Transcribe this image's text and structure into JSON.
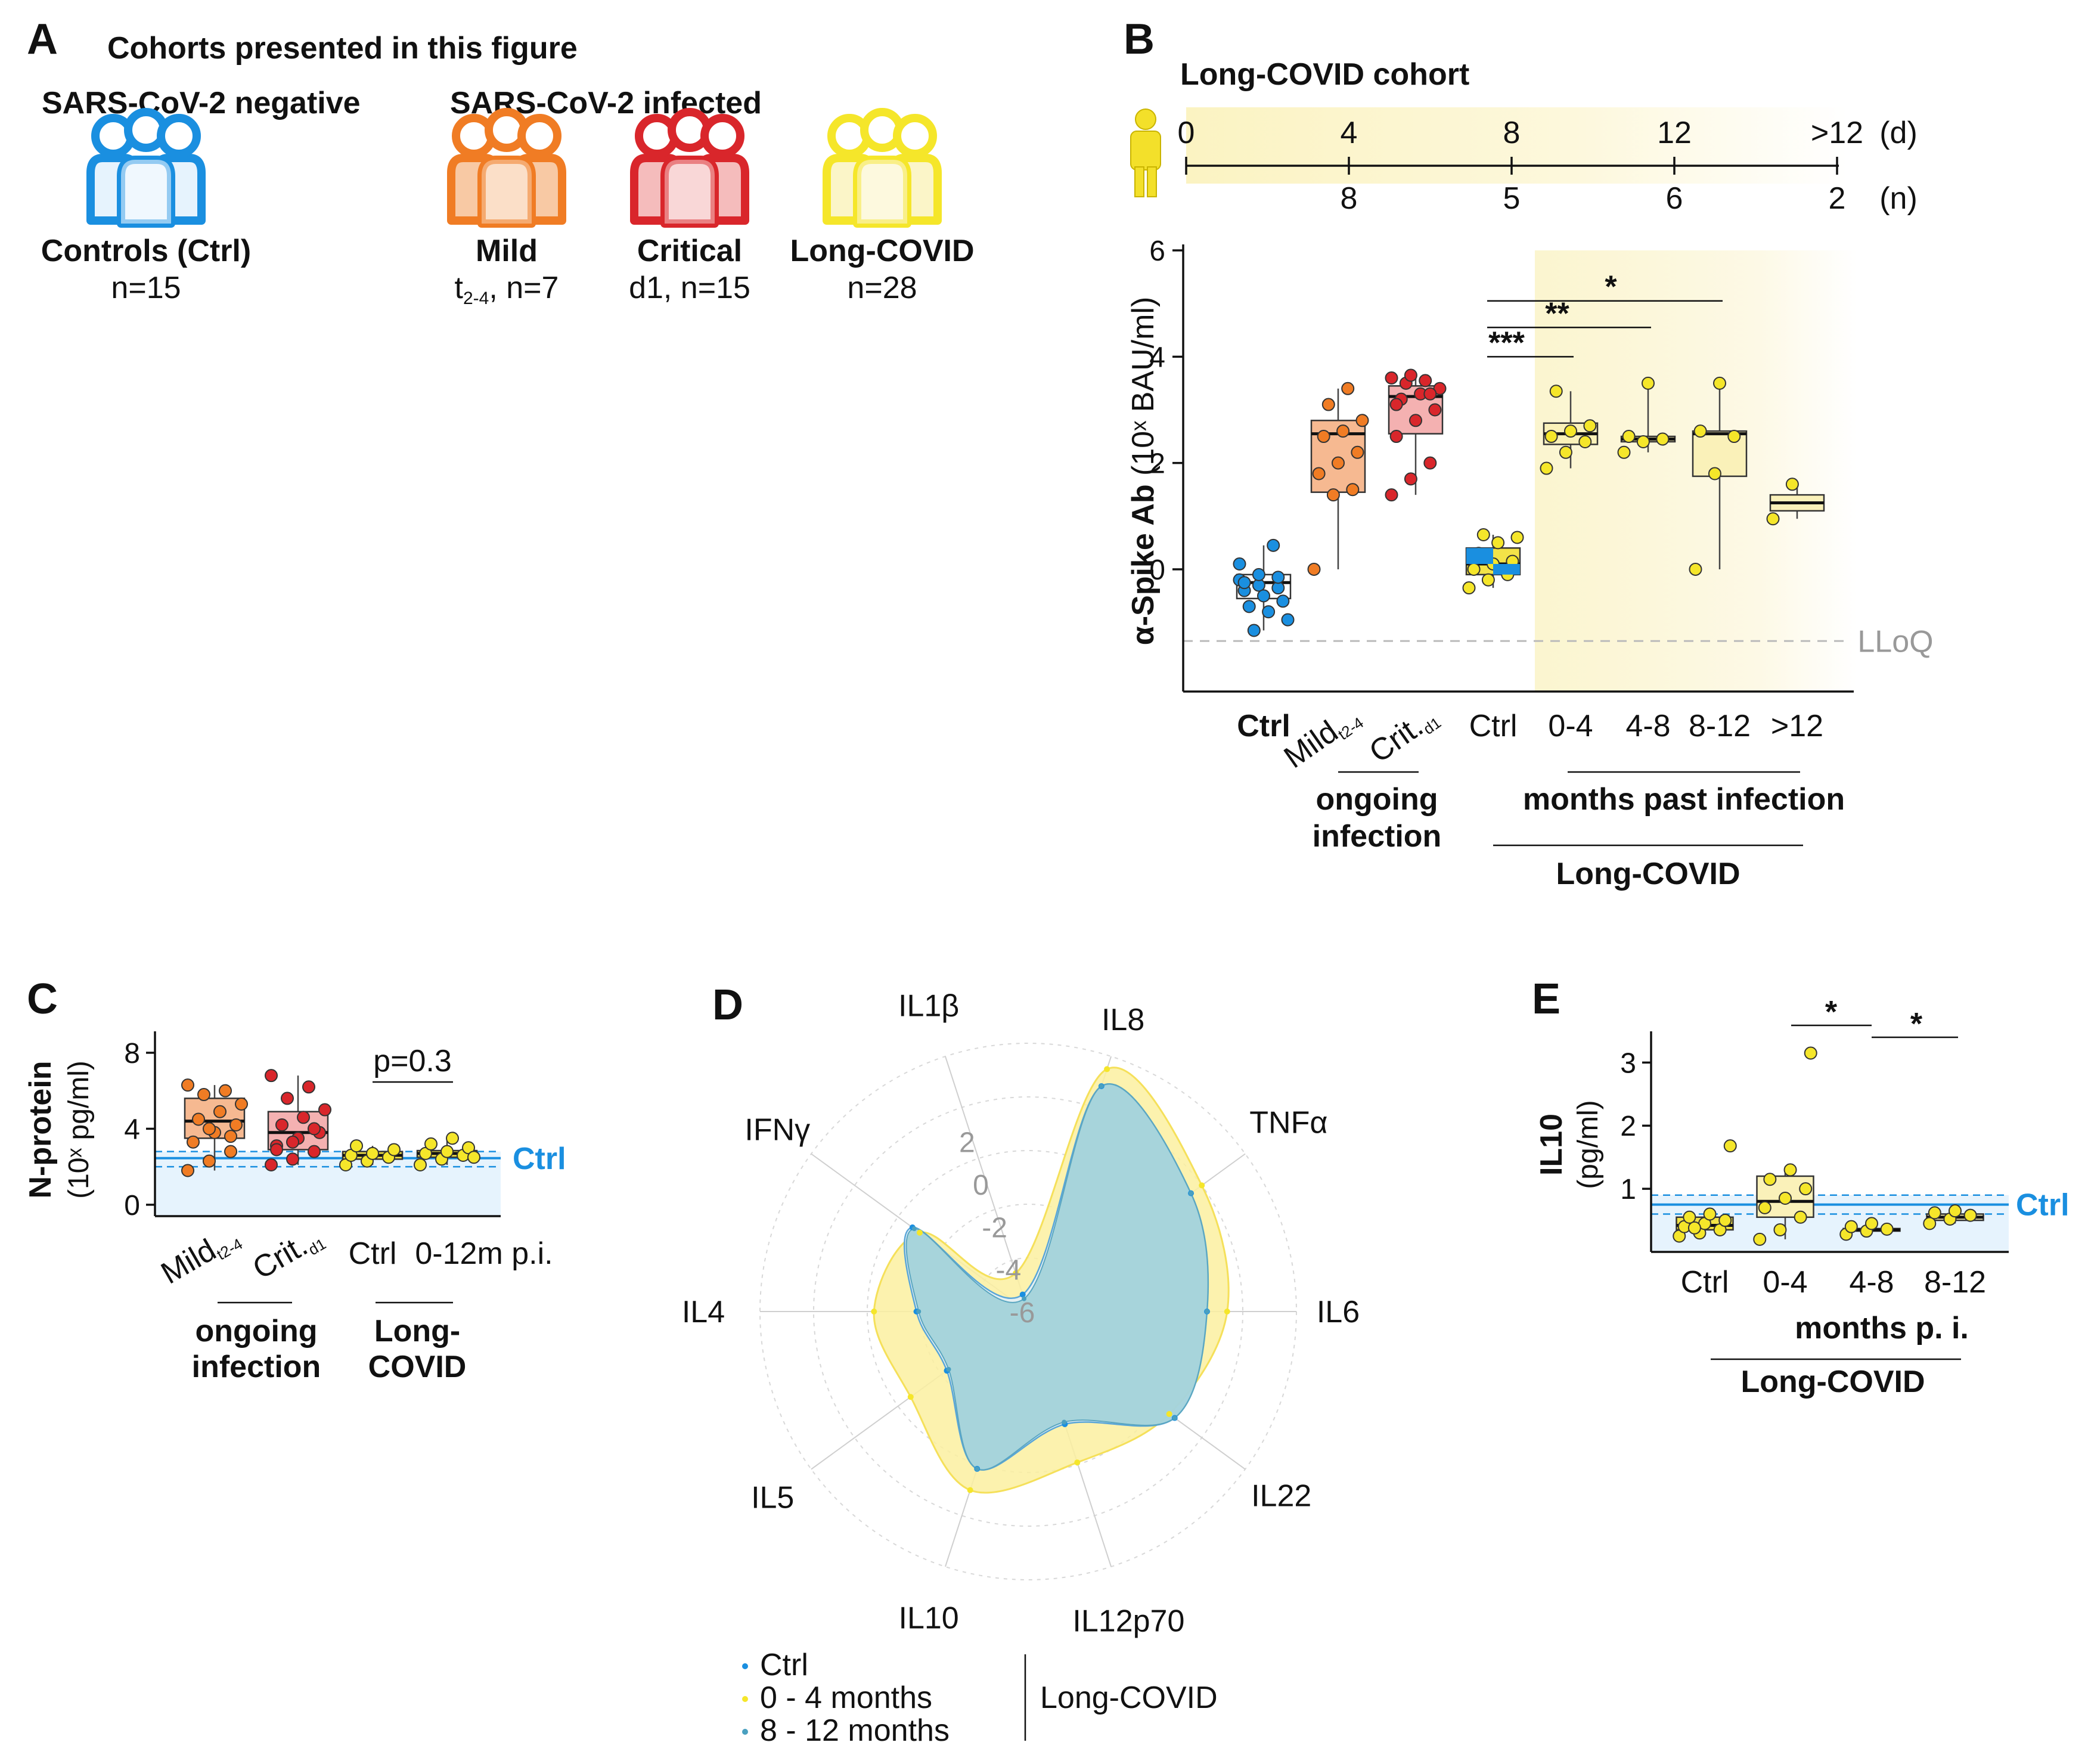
{
  "colors": {
    "ctrl_blue": "#1a8fe0",
    "mild_orange": "#f07c24",
    "critical_red": "#d9262b",
    "longcovid_yellow": "#f5e62a",
    "box_orange": "#f6b991",
    "box_red": "#f4b1b1",
    "box_yellow": "#faf1b9",
    "ctrl_shade": "#e6f3fd",
    "teal": "#7ec1cb"
  },
  "panelA": {
    "letter": "A",
    "title": "Cohorts presented in this figure",
    "neg_header": "SARS-CoV-2 negative",
    "inf_header": "SARS-CoV-2 infected",
    "cohorts": [
      {
        "icon": "people-group-blue-icon",
        "name": "Controls (Ctrl)",
        "n": "n=15"
      },
      {
        "icon": "people-group-orange-icon",
        "name": "Mild",
        "n_sub": "2-4",
        "n": ", n=7",
        "n_prefix": "t"
      },
      {
        "icon": "people-group-red-icon",
        "name": "Critical",
        "n": "d1, n=15"
      },
      {
        "icon": "people-group-yellow-icon",
        "name": "Long-COVID",
        "n": "n=28"
      }
    ]
  },
  "panelB": {
    "letter": "B",
    "cohort_title": "Long-COVID cohort",
    "timeline_top": [
      "0",
      "4",
      "8",
      "12",
      ">12"
    ],
    "timeline_top_unit": "(d)",
    "timeline_bottom": [
      "8",
      "5",
      "6",
      "2"
    ],
    "timeline_bottom_unit": "(n)",
    "lloq": "LLoQ",
    "group1": "ongoing",
    "group1b": "infection",
    "group2": "months past infection",
    "group3": "Long-COVID",
    "sig": [
      "***",
      "**",
      "*"
    ]
  },
  "panelC": {
    "letter": "C",
    "pval": "p=0.3",
    "ctrl_label": "Ctrl",
    "group1": "ongoing",
    "group1b": "infection",
    "group2": "Long-",
    "group2b": "COVID"
  },
  "panelD": {
    "letter": "D",
    "legend": [
      "Ctrl",
      "0 - 4 months",
      "8 - 12 months"
    ],
    "legend_group": "Long-COVID"
  },
  "panelE": {
    "letter": "E",
    "sig": [
      "*",
      "*"
    ],
    "ctrl_label": "Ctrl",
    "group1": "months p. i.",
    "group2": "Long-COVID"
  },
  "chart_data": [
    {
      "id": "B",
      "type": "box",
      "ylabel": "α-Spike Ab (10^x BAU/ml)",
      "ylabel_main": "α-Spike Ab",
      "ylabel_unit": "(10ˣ BAU/ml)",
      "ylim": [
        -2.3,
        6
      ],
      "yticks": [
        "0",
        "2",
        "4",
        "6"
      ],
      "lloq": -1.35,
      "categories": [
        "Ctrl",
        "Mild t2-4",
        "Crit. d1",
        "Ctrl",
        "0-4",
        "4-8",
        "8-12",
        ">12"
      ],
      "category_labels": [
        "Ctrl",
        "Mild",
        "Crit.",
        "Ctrl",
        "0-4",
        "4-8",
        "8-12",
        ">12"
      ],
      "category_subs": [
        "",
        "t2-4",
        "d1",
        "",
        "",
        "",
        "",
        ""
      ],
      "boxes": [
        {
          "q1": -0.55,
          "median": -0.25,
          "q3": -0.1,
          "wlo": -1.15,
          "whi": 0.45,
          "points": [
            -0.2,
            -0.3,
            -0.35,
            -0.4,
            -0.5,
            -0.6,
            -0.7,
            -0.8,
            -0.95,
            -1.15,
            0.45,
            0.1,
            -0.1,
            -0.15,
            -0.25
          ]
        },
        {
          "q1": 1.45,
          "median": 2.55,
          "q3": 2.8,
          "wlo": 0.0,
          "whi": 3.4,
          "points": [
            0.0,
            1.4,
            1.5,
            1.8,
            2.0,
            2.2,
            2.5,
            2.6,
            2.8,
            3.1,
            3.4
          ]
        },
        {
          "q1": 2.55,
          "median": 3.25,
          "q3": 3.45,
          "wlo": 1.4,
          "whi": 3.65,
          "points": [
            1.4,
            1.7,
            2.0,
            2.5,
            2.8,
            3.0,
            3.2,
            3.3,
            3.4,
            3.5,
            3.55,
            3.6,
            3.65,
            3.3,
            3.1
          ]
        },
        {
          "q1": -0.1,
          "median": 0.1,
          "q3": 0.4,
          "wlo": -0.35,
          "whi": 0.65,
          "points": [
            -0.35,
            -0.2,
            -0.1,
            0.0,
            0.1,
            0.15,
            0.3,
            0.5,
            0.6,
            0.65
          ]
        },
        {
          "q1": 2.35,
          "median": 2.55,
          "q3": 2.75,
          "wlo": 1.9,
          "whi": 3.35,
          "points": [
            1.9,
            2.2,
            2.4,
            2.5,
            2.6,
            2.7,
            3.35
          ]
        },
        {
          "q1": 2.4,
          "median": 2.45,
          "q3": 2.5,
          "wlo": 2.2,
          "whi": 3.5,
          "points": [
            2.2,
            2.4,
            2.45,
            2.5,
            3.5
          ]
        },
        {
          "q1": 1.75,
          "median": 2.55,
          "q3": 2.6,
          "wlo": 0.0,
          "whi": 3.5,
          "points": [
            0.0,
            1.8,
            2.5,
            2.6,
            3.5
          ]
        },
        {
          "q1": 1.1,
          "median": 1.25,
          "q3": 1.4,
          "wlo": 0.95,
          "whi": 1.6,
          "points": [
            0.95,
            1.6
          ]
        }
      ]
    },
    {
      "id": "C",
      "type": "box",
      "ylabel_main": "N-protein",
      "ylabel_unit": "(10ˣ pg/ml)",
      "ylim": [
        -0.6,
        8.5
      ],
      "yticks": [
        "0",
        "4",
        "8"
      ],
      "ctrl_line": 2.45,
      "ctrl_band": [
        2.0,
        2.8
      ],
      "categories": [
        "Mild t2-4",
        "Crit. d1",
        "Ctrl",
        "0-12m p.i."
      ],
      "category_labels": [
        "Mild",
        "Crit.",
        "Ctrl",
        "0-12m p.i."
      ],
      "category_subs": [
        "t2-4",
        "d1",
        "",
        ""
      ],
      "boxes": [
        {
          "q1": 3.5,
          "median": 4.4,
          "q3": 5.6,
          "wlo": 1.8,
          "whi": 6.3,
          "points": [
            1.8,
            2.3,
            2.8,
            3.3,
            3.8,
            4.2,
            4.5,
            4.9,
            5.3,
            5.8,
            6.0,
            6.3,
            4.0,
            3.6
          ]
        },
        {
          "q1": 2.9,
          "median": 3.8,
          "q3": 4.9,
          "wlo": 2.1,
          "whi": 6.8,
          "points": [
            2.1,
            2.4,
            2.8,
            3.1,
            3.5,
            3.8,
            4.2,
            4.6,
            5.0,
            5.6,
            6.2,
            6.8,
            3.3,
            4.0,
            2.9
          ]
        },
        {
          "q1": 2.4,
          "median": 2.6,
          "q3": 2.8,
          "wlo": 2.1,
          "whi": 3.1,
          "points": [
            2.1,
            2.3,
            2.5,
            2.6,
            2.7,
            2.9,
            3.1
          ]
        },
        {
          "q1": 2.5,
          "median": 2.7,
          "q3": 2.85,
          "wlo": 2.1,
          "whi": 3.5,
          "points": [
            2.1,
            2.4,
            2.6,
            2.7,
            2.8,
            3.0,
            3.2,
            3.5,
            2.5
          ]
        }
      ]
    },
    {
      "id": "D",
      "type": "radar",
      "axes": [
        "IL8",
        "TNFα",
        "IL6",
        "IL22",
        "IL12p70",
        "IL10",
        "IL5",
        "IL4",
        "IFNγ",
        "IL1β"
      ],
      "rlim": [
        -6,
        6
      ],
      "rticks": [
        "2",
        "0",
        "-2",
        "-4",
        "-6"
      ],
      "series": [
        {
          "name": "Ctrl",
          "values": [
            4.6,
            3.0,
            2.0,
            2.1,
            -0.7,
            1.4,
            -1.5,
            -1.0,
            0.4,
            -5.2
          ]
        },
        {
          "name": "0 - 4 months",
          "values": [
            5.4,
            3.6,
            2.9,
            1.8,
            1.1,
            2.4,
            0.5,
            0.9,
            0.0,
            -4.2
          ]
        },
        {
          "name": "8 - 12 months",
          "values": [
            4.6,
            3.0,
            2.0,
            2.1,
            -0.8,
            1.4,
            -1.6,
            -1.1,
            0.3,
            -5.4
          ]
        }
      ]
    },
    {
      "id": "E",
      "type": "box",
      "ylabel_main": "IL10",
      "ylabel_unit": "(pg/ml)",
      "ylim": [
        0,
        3.4
      ],
      "yticks": [
        "1",
        "2",
        "3"
      ],
      "ctrl_line": 0.75,
      "ctrl_band": [
        0.6,
        0.9
      ],
      "categories": [
        "Ctrl",
        "0-4",
        "4-8",
        "8-12"
      ],
      "boxes": [
        {
          "q1": 0.35,
          "median": 0.42,
          "q3": 0.55,
          "wlo": 0.25,
          "whi": 0.6,
          "points": [
            0.25,
            0.3,
            0.35,
            0.4,
            0.45,
            0.5,
            0.55,
            0.6,
            1.68,
            0.38
          ]
        },
        {
          "q1": 0.55,
          "median": 0.8,
          "q3": 1.2,
          "wlo": 0.2,
          "whi": 1.35,
          "points": [
            0.2,
            0.35,
            0.55,
            0.7,
            0.85,
            1.0,
            1.15,
            1.3,
            3.15
          ]
        },
        {
          "q1": 0.33,
          "median": 0.35,
          "q3": 0.37,
          "wlo": 0.28,
          "whi": 0.45,
          "points": [
            0.28,
            0.33,
            0.36,
            0.4,
            0.45
          ]
        },
        {
          "q1": 0.5,
          "median": 0.55,
          "q3": 0.6,
          "wlo": 0.45,
          "whi": 0.65,
          "points": [
            0.45,
            0.52,
            0.58,
            0.62,
            0.65
          ]
        }
      ]
    }
  ]
}
